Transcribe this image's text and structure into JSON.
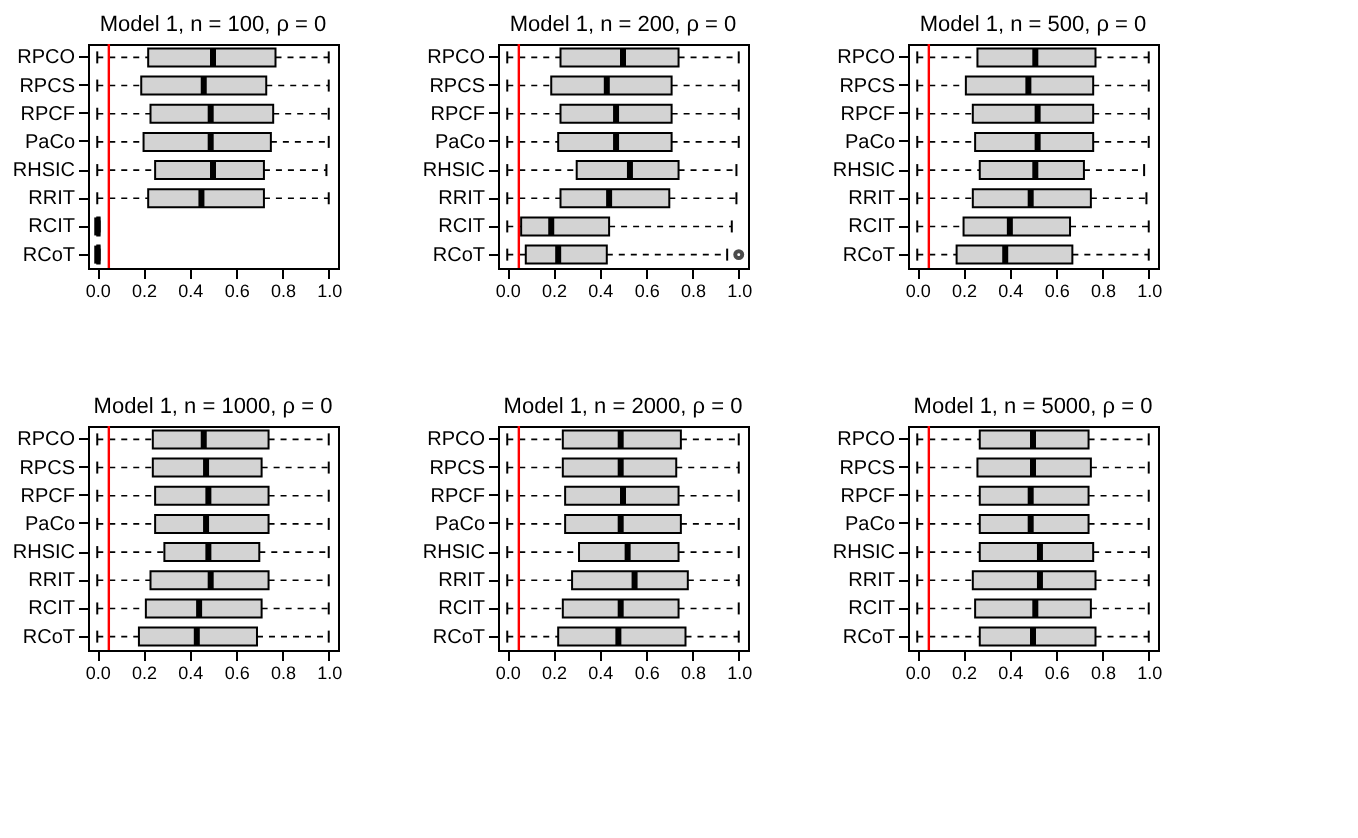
{
  "chart_data": [
    {
      "type": "box",
      "orientation": "horizontal",
      "title": "Model 1, n = 100, ρ = 0",
      "categories": [
        "RPCO",
        "RPCS",
        "RPCF",
        "PaCo",
        "RHSIC",
        "RRIT",
        "RCIT",
        "RCoT"
      ],
      "xlim": [
        -0.04,
        1.04
      ],
      "xticks": [
        {
          "value": 0,
          "label": "0.0"
        },
        {
          "value": 0.2,
          "label": "0.2"
        },
        {
          "value": 0.4,
          "label": "0.4"
        },
        {
          "value": 0.6,
          "label": "0.6"
        },
        {
          "value": 0.8,
          "label": "0.8"
        },
        {
          "value": 1,
          "label": "1.0"
        }
      ],
      "grid": false,
      "ref_lines": [
        {
          "axis": "x",
          "value": 0.05,
          "color": "#ff0000"
        }
      ],
      "series": [
        {
          "color": "#d3d3d3",
          "boxes": [
            {
              "low": 0,
              "q1": 0.22,
              "median": 0.5,
              "q3": 0.77,
              "high": 1.0
            },
            {
              "low": 0,
              "q1": 0.19,
              "median": 0.46,
              "q3": 0.73,
              "high": 1.0
            },
            {
              "low": 0,
              "q1": 0.23,
              "median": 0.49,
              "q3": 0.76,
              "high": 1.0
            },
            {
              "low": 0,
              "q1": 0.2,
              "median": 0.49,
              "q3": 0.75,
              "high": 1.0
            },
            {
              "low": 0,
              "q1": 0.25,
              "median": 0.5,
              "q3": 0.72,
              "high": 0.99
            },
            {
              "low": 0,
              "q1": 0.22,
              "median": 0.45,
              "q3": 0.72,
              "high": 1.0
            },
            {
              "low": 0,
              "q1": 0,
              "median": 0,
              "q3": 0.01,
              "high": 0.01
            },
            {
              "low": 0,
              "q1": 0,
              "median": 0,
              "q3": 0.01,
              "high": 0.01
            }
          ]
        }
      ]
    },
    {
      "type": "box",
      "orientation": "horizontal",
      "title": "Model 1, n = 200, ρ = 0",
      "categories": [
        "RPCO",
        "RPCS",
        "RPCF",
        "PaCo",
        "RHSIC",
        "RRIT",
        "RCIT",
        "RCoT"
      ],
      "xlim": [
        -0.04,
        1.04
      ],
      "xticks": [
        {
          "value": 0,
          "label": "0.0"
        },
        {
          "value": 0.2,
          "label": "0.2"
        },
        {
          "value": 0.4,
          "label": "0.4"
        },
        {
          "value": 0.6,
          "label": "0.6"
        },
        {
          "value": 0.8,
          "label": "0.8"
        },
        {
          "value": 1,
          "label": "1.0"
        }
      ],
      "grid": false,
      "ref_lines": [
        {
          "axis": "x",
          "value": 0.05,
          "color": "#ff0000"
        }
      ],
      "series": [
        {
          "color": "#d3d3d3",
          "boxes": [
            {
              "low": 0,
              "q1": 0.23,
              "median": 0.5,
              "q3": 0.74,
              "high": 1.0
            },
            {
              "low": 0,
              "q1": 0.19,
              "median": 0.43,
              "q3": 0.71,
              "high": 1.0
            },
            {
              "low": 0,
              "q1": 0.23,
              "median": 0.47,
              "q3": 0.71,
              "high": 1.0
            },
            {
              "low": 0,
              "q1": 0.22,
              "median": 0.47,
              "q3": 0.71,
              "high": 1.0
            },
            {
              "low": 0,
              "q1": 0.3,
              "median": 0.53,
              "q3": 0.74,
              "high": 0.99
            },
            {
              "low": 0,
              "q1": 0.23,
              "median": 0.44,
              "q3": 0.7,
              "high": 0.99
            },
            {
              "low": 0,
              "q1": 0.06,
              "median": 0.19,
              "q3": 0.44,
              "high": 0.97
            },
            {
              "low": 0,
              "q1": 0.08,
              "median": 0.22,
              "q3": 0.43,
              "high": 0.95,
              "outliers": [
                1.0
              ]
            }
          ]
        }
      ]
    },
    {
      "type": "box",
      "orientation": "horizontal",
      "title": "Model 1, n = 500, ρ = 0",
      "categories": [
        "RPCO",
        "RPCS",
        "RPCF",
        "PaCo",
        "RHSIC",
        "RRIT",
        "RCIT",
        "RCoT"
      ],
      "xlim": [
        -0.04,
        1.04
      ],
      "xticks": [
        {
          "value": 0,
          "label": "0.0"
        },
        {
          "value": 0.2,
          "label": "0.2"
        },
        {
          "value": 0.4,
          "label": "0.4"
        },
        {
          "value": 0.6,
          "label": "0.6"
        },
        {
          "value": 0.8,
          "label": "0.8"
        },
        {
          "value": 1,
          "label": "1.0"
        }
      ],
      "grid": false,
      "ref_lines": [
        {
          "axis": "x",
          "value": 0.05,
          "color": "#ff0000"
        }
      ],
      "series": [
        {
          "color": "#d3d3d3",
          "boxes": [
            {
              "low": 0,
              "q1": 0.26,
              "median": 0.51,
              "q3": 0.77,
              "high": 1.0
            },
            {
              "low": 0,
              "q1": 0.21,
              "median": 0.48,
              "q3": 0.76,
              "high": 1.0
            },
            {
              "low": 0,
              "q1": 0.24,
              "median": 0.52,
              "q3": 0.76,
              "high": 1.0
            },
            {
              "low": 0,
              "q1": 0.25,
              "median": 0.52,
              "q3": 0.76,
              "high": 1.0
            },
            {
              "low": 0,
              "q1": 0.27,
              "median": 0.51,
              "q3": 0.72,
              "high": 0.98
            },
            {
              "low": 0,
              "q1": 0.24,
              "median": 0.49,
              "q3": 0.75,
              "high": 0.99
            },
            {
              "low": 0,
              "q1": 0.2,
              "median": 0.4,
              "q3": 0.66,
              "high": 1.0
            },
            {
              "low": 0,
              "q1": 0.17,
              "median": 0.38,
              "q3": 0.67,
              "high": 1.0
            }
          ]
        }
      ]
    },
    {
      "type": "box",
      "orientation": "horizontal",
      "title": "Model 1, n = 1000, ρ = 0",
      "categories": [
        "RPCO",
        "RPCS",
        "RPCF",
        "PaCo",
        "RHSIC",
        "RRIT",
        "RCIT",
        "RCoT"
      ],
      "xlim": [
        -0.04,
        1.04
      ],
      "xticks": [
        {
          "value": 0,
          "label": "0.0"
        },
        {
          "value": 0.2,
          "label": "0.2"
        },
        {
          "value": 0.4,
          "label": "0.4"
        },
        {
          "value": 0.6,
          "label": "0.6"
        },
        {
          "value": 0.8,
          "label": "0.8"
        },
        {
          "value": 1,
          "label": "1.0"
        }
      ],
      "grid": false,
      "ref_lines": [
        {
          "axis": "x",
          "value": 0.05,
          "color": "#ff0000"
        }
      ],
      "series": [
        {
          "color": "#d3d3d3",
          "boxes": [
            {
              "low": 0,
              "q1": 0.24,
              "median": 0.46,
              "q3": 0.74,
              "high": 1.0
            },
            {
              "low": 0,
              "q1": 0.24,
              "median": 0.47,
              "q3": 0.71,
              "high": 1.0
            },
            {
              "low": 0,
              "q1": 0.25,
              "median": 0.48,
              "q3": 0.74,
              "high": 1.0
            },
            {
              "low": 0,
              "q1": 0.25,
              "median": 0.47,
              "q3": 0.74,
              "high": 1.0
            },
            {
              "low": 0,
              "q1": 0.29,
              "median": 0.48,
              "q3": 0.7,
              "high": 1.0
            },
            {
              "low": 0,
              "q1": 0.23,
              "median": 0.49,
              "q3": 0.74,
              "high": 1.0
            },
            {
              "low": 0,
              "q1": 0.21,
              "median": 0.44,
              "q3": 0.71,
              "high": 1.0
            },
            {
              "low": 0,
              "q1": 0.18,
              "median": 0.43,
              "q3": 0.69,
              "high": 1.0
            }
          ]
        }
      ]
    },
    {
      "type": "box",
      "orientation": "horizontal",
      "title": "Model 1, n = 2000, ρ = 0",
      "categories": [
        "RPCO",
        "RPCS",
        "RPCF",
        "PaCo",
        "RHSIC",
        "RRIT",
        "RCIT",
        "RCoT"
      ],
      "xlim": [
        -0.04,
        1.04
      ],
      "xticks": [
        {
          "value": 0,
          "label": "0.0"
        },
        {
          "value": 0.2,
          "label": "0.2"
        },
        {
          "value": 0.4,
          "label": "0.4"
        },
        {
          "value": 0.6,
          "label": "0.6"
        },
        {
          "value": 0.8,
          "label": "0.8"
        },
        {
          "value": 1,
          "label": "1.0"
        }
      ],
      "grid": false,
      "ref_lines": [
        {
          "axis": "x",
          "value": 0.05,
          "color": "#ff0000"
        }
      ],
      "series": [
        {
          "color": "#d3d3d3",
          "boxes": [
            {
              "low": 0,
              "q1": 0.24,
              "median": 0.49,
              "q3": 0.75,
              "high": 1.0
            },
            {
              "low": 0,
              "q1": 0.24,
              "median": 0.49,
              "q3": 0.73,
              "high": 1.0
            },
            {
              "low": 0,
              "q1": 0.25,
              "median": 0.5,
              "q3": 0.74,
              "high": 1.0
            },
            {
              "low": 0,
              "q1": 0.25,
              "median": 0.49,
              "q3": 0.75,
              "high": 1.0
            },
            {
              "low": 0,
              "q1": 0.31,
              "median": 0.52,
              "q3": 0.74,
              "high": 1.0
            },
            {
              "low": 0,
              "q1": 0.28,
              "median": 0.55,
              "q3": 0.78,
              "high": 1.0
            },
            {
              "low": 0,
              "q1": 0.24,
              "median": 0.49,
              "q3": 0.74,
              "high": 1.0
            },
            {
              "low": 0,
              "q1": 0.22,
              "median": 0.48,
              "q3": 0.77,
              "high": 1.0
            }
          ]
        }
      ]
    },
    {
      "type": "box",
      "orientation": "horizontal",
      "title": "Model 1, n = 5000, ρ = 0",
      "categories": [
        "RPCO",
        "RPCS",
        "RPCF",
        "PaCo",
        "RHSIC",
        "RRIT",
        "RCIT",
        "RCoT"
      ],
      "xlim": [
        -0.04,
        1.04
      ],
      "xticks": [
        {
          "value": 0,
          "label": "0.0"
        },
        {
          "value": 0.2,
          "label": "0.2"
        },
        {
          "value": 0.4,
          "label": "0.4"
        },
        {
          "value": 0.6,
          "label": "0.6"
        },
        {
          "value": 0.8,
          "label": "0.8"
        },
        {
          "value": 1,
          "label": "1.0"
        }
      ],
      "grid": false,
      "ref_lines": [
        {
          "axis": "x",
          "value": 0.05,
          "color": "#ff0000"
        }
      ],
      "series": [
        {
          "color": "#d3d3d3",
          "boxes": [
            {
              "low": 0,
              "q1": 0.27,
              "median": 0.5,
              "q3": 0.74,
              "high": 1.0
            },
            {
              "low": 0,
              "q1": 0.26,
              "median": 0.5,
              "q3": 0.75,
              "high": 1.0
            },
            {
              "low": 0,
              "q1": 0.27,
              "median": 0.49,
              "q3": 0.74,
              "high": 1.0
            },
            {
              "low": 0,
              "q1": 0.27,
              "median": 0.49,
              "q3": 0.74,
              "high": 1.0
            },
            {
              "low": 0,
              "q1": 0.27,
              "median": 0.53,
              "q3": 0.76,
              "high": 1.0
            },
            {
              "low": 0,
              "q1": 0.24,
              "median": 0.53,
              "q3": 0.77,
              "high": 1.0
            },
            {
              "low": 0,
              "q1": 0.25,
              "median": 0.51,
              "q3": 0.75,
              "high": 1.0
            },
            {
              "low": 0,
              "q1": 0.27,
              "median": 0.5,
              "q3": 0.77,
              "high": 1.0
            }
          ]
        }
      ]
    }
  ]
}
